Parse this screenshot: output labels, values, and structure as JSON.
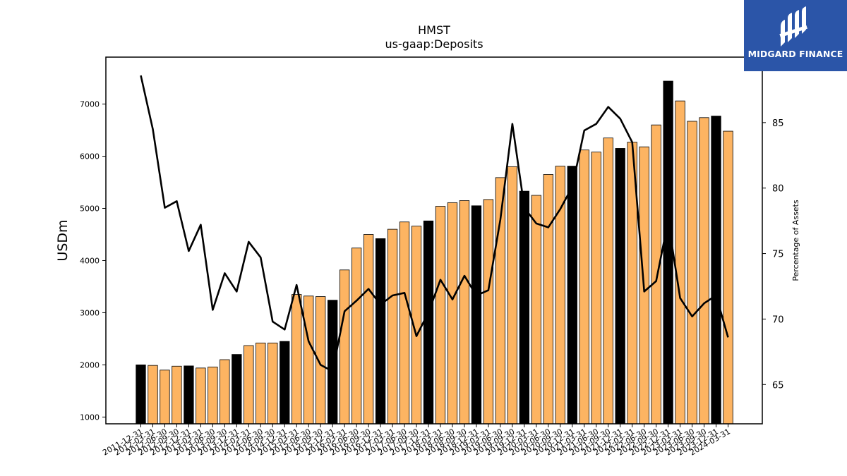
{
  "brand": {
    "name": "MIDGARD FINANCE",
    "bg": "#2b55a8"
  },
  "chart_data": {
    "type": "bar+line",
    "title": "HMST",
    "subtitle": "us-gaap:Deposits",
    "ylabel": "USDm",
    "y2label": "Percentage of Assets",
    "ylim": [
      870,
      7900
    ],
    "y2lim": [
      62,
      90
    ],
    "yticks": [
      1000,
      2000,
      3000,
      4000,
      5000,
      6000,
      7000
    ],
    "y2ticks": [
      65,
      70,
      75,
      80,
      85
    ],
    "colors": {
      "quarter_bar": "#fdb462",
      "year_end_bar": "#000000",
      "line": "#000000"
    },
    "categories": [
      "2011-12-31",
      "2012-03-31",
      "2012-06-30",
      "2012-09-30",
      "2012-12-31",
      "2013-03-31",
      "2013-06-30",
      "2013-09-30",
      "2013-12-31",
      "2014-03-31",
      "2014-06-30",
      "2014-09-30",
      "2014-12-31",
      "2015-03-31",
      "2015-06-30",
      "2015-09-30",
      "2015-12-31",
      "2016-03-31",
      "2016-06-30",
      "2016-09-30",
      "2016-12-31",
      "2017-03-31",
      "2017-06-30",
      "2017-09-30",
      "2017-12-31",
      "2018-03-31",
      "2018-06-30",
      "2018-09-30",
      "2018-12-31",
      "2019-03-31",
      "2019-06-30",
      "2019-09-30",
      "2019-12-31",
      "2020-03-31",
      "2020-06-30",
      "2020-09-30",
      "2020-12-31",
      "2021-03-31",
      "2021-06-30",
      "2021-09-30",
      "2021-12-31",
      "2022-03-31",
      "2022-06-30",
      "2022-09-30",
      "2022-12-31",
      "2023-03-31",
      "2023-06-30",
      "2023-09-30",
      "2023-12-31",
      "2024-03-31"
    ],
    "tick_labels": [
      "2011-12-31",
      "2012-03-31",
      "2012-06-30",
      "2012-09-30",
      "2012-12-31",
      "2013-03-31",
      "2013-06-30",
      "2013-09-30",
      "2013-12-31",
      "2014-03-31",
      "2014-06-30",
      "2014-09-30",
      "2014-12-31",
      "2015-03-31",
      "2015-06-30",
      "2015-09-30",
      "2015-12-31",
      "2016-03-31",
      "2016-06-30",
      "2016-09-30",
      "2016-12-31",
      "2017-03-31",
      "2017-06-30",
      "2017-09-30",
      "2017-12-31",
      "2018-03-31",
      "2018-06-30",
      "2018-09-30",
      "2018-12-31",
      "2019-03-31",
      "2019-06-30",
      "2019-09-30",
      "2019-12-31",
      "2020-03-31",
      "2020-06-30",
      "2020-09-30",
      "2020-12-31",
      "2021-03-31",
      "2021-06-30",
      "2021-09-30",
      "2021-12-31",
      "2022-03-31",
      "2022-06-30",
      "2022-09-30",
      "2022-12-31",
      "2023-03-31",
      "2023-06-30",
      "2023-09-30",
      "2023-12-31",
      "2024-03-31"
    ],
    "deposits": [
      2000,
      1990,
      1900,
      1975,
      1980,
      1940,
      1960,
      2100,
      2200,
      2370,
      2420,
      2420,
      2450,
      3350,
      3320,
      3310,
      3240,
      3820,
      4240,
      4500,
      4420,
      4600,
      4740,
      4660,
      4760,
      5040,
      5110,
      5150,
      5050,
      5170,
      5590,
      5800,
      5330,
      5250,
      5650,
      5810,
      5810,
      6120,
      6080,
      6350,
      6150,
      6270,
      6180,
      6600,
      7440,
      7060,
      6670,
      6740,
      6770,
      6480
    ],
    "year_end": [
      true,
      false,
      false,
      false,
      true,
      false,
      false,
      false,
      true,
      false,
      false,
      false,
      true,
      false,
      false,
      false,
      true,
      false,
      false,
      false,
      true,
      false,
      false,
      false,
      true,
      false,
      false,
      false,
      true,
      false,
      false,
      false,
      true,
      false,
      false,
      false,
      true,
      false,
      false,
      false,
      true,
      false,
      false,
      false,
      true,
      false,
      false,
      false,
      true,
      false
    ],
    "pct_of_assets": [
      88.6,
      84.5,
      78.5,
      79.0,
      75.2,
      77.2,
      70.7,
      73.5,
      72.1,
      75.9,
      74.7,
      69.8,
      69.2,
      72.6,
      68.3,
      66.5,
      66.0,
      70.6,
      71.4,
      72.3,
      71.1,
      71.8,
      72.0,
      68.7,
      70.5,
      73.0,
      71.5,
      73.3,
      71.8,
      72.2,
      77.6,
      84.9,
      78.5,
      77.3,
      77.0,
      78.4,
      80.1,
      84.4,
      84.9,
      86.2,
      85.3,
      83.5,
      72.1,
      72.9,
      77.5,
      71.6,
      70.2,
      71.2,
      71.8,
      68.6
    ]
  }
}
